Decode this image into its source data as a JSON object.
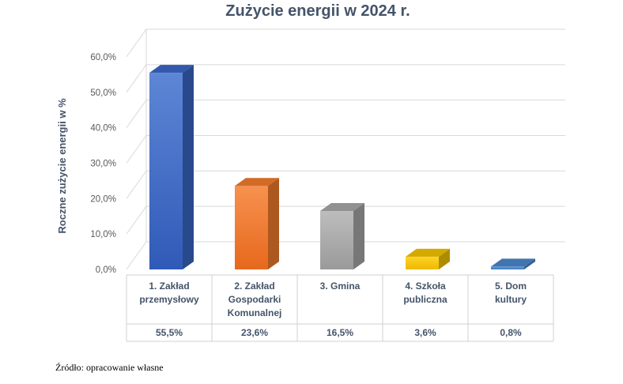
{
  "chart_data": {
    "type": "bar",
    "title": "Zużycie energii w 2024 r.",
    "xlabel": "",
    "ylabel": "Roczne zużycie energii w %",
    "ylim": [
      0,
      60
    ],
    "yticks": [
      "0,0%",
      "10,0%",
      "20,0%",
      "30,0%",
      "40,0%",
      "50,0%",
      "60,0%"
    ],
    "categories": [
      [
        "1. Zakład",
        "przemysłowy"
      ],
      [
        "2. Zakład",
        "Gospodarki",
        "Komunalnej"
      ],
      [
        "3. Gmina"
      ],
      [
        "4. Szkoła",
        "publiczna"
      ],
      [
        "5. Dom",
        "kultury"
      ]
    ],
    "values": [
      55.5,
      23.6,
      16.5,
      3.6,
      0.8
    ],
    "data_labels": [
      "55,5%",
      "23,6%",
      "16,5%",
      "3,6%",
      "0,8%"
    ],
    "colors": [
      "#3a66c4",
      "#ef7a2c",
      "#a5a5a5",
      "#f2c200",
      "#4a86c8"
    ],
    "grid": true,
    "legend": "none",
    "style": "3d-column with data table"
  },
  "source_note": "Źródło: opracowanie własne"
}
